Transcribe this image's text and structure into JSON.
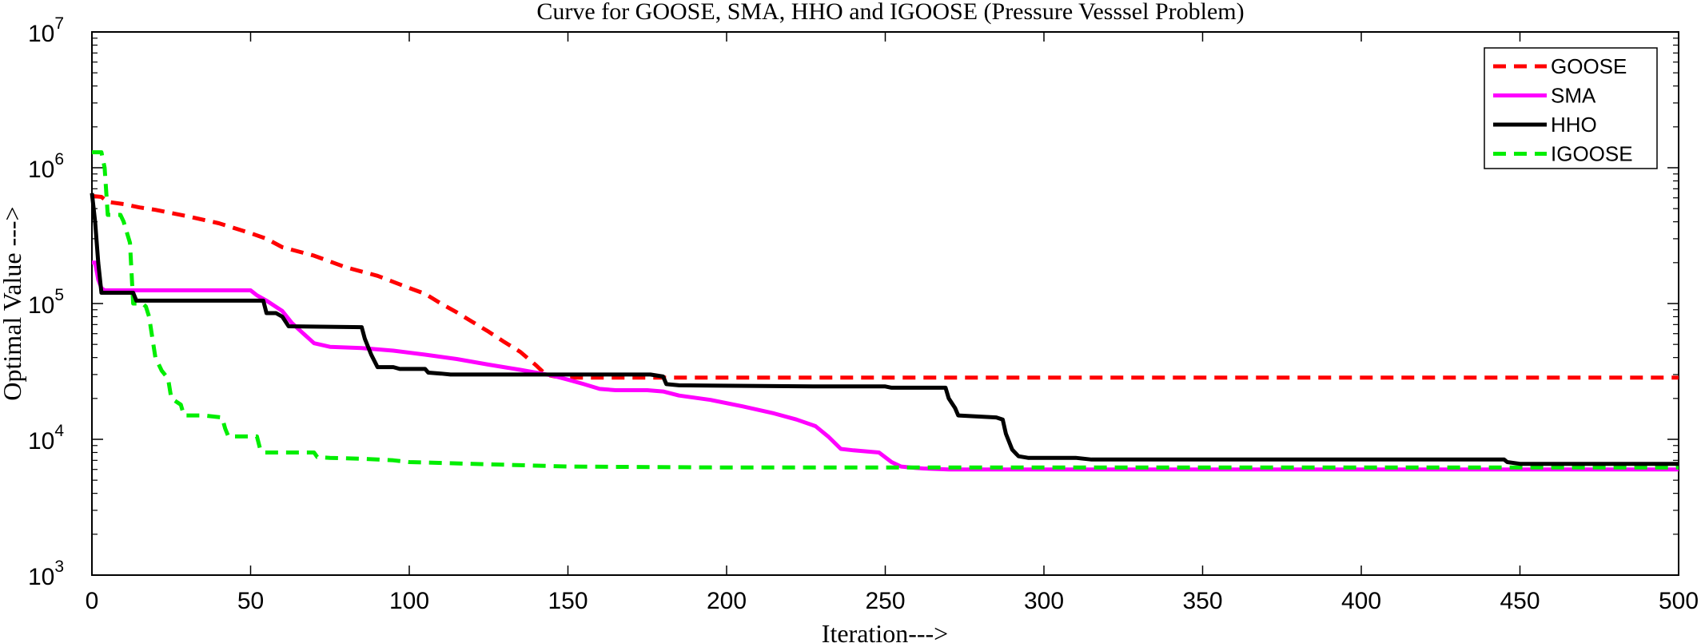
{
  "chart_data": {
    "type": "line",
    "title": "Curve for GOOSE, SMA, HHO and IGOOSE (Pressure Vesssel Problem)",
    "xlabel": "Iteration--->",
    "ylabel": "Optimal Value --->",
    "xlim": [
      0,
      500
    ],
    "ylim": [
      1000,
      10000000
    ],
    "yscale": "log",
    "x_ticks": [
      "0",
      "50",
      "100",
      "150",
      "200",
      "250",
      "300",
      "350",
      "400",
      "450",
      "500"
    ],
    "y_ticks": [
      {
        "base": "10",
        "exp": "3",
        "value": 1000
      },
      {
        "base": "10",
        "exp": "4",
        "value": 10000
      },
      {
        "base": "10",
        "exp": "5",
        "value": 100000
      },
      {
        "base": "10",
        "exp": "6",
        "value": 1000000
      },
      {
        "base": "10",
        "exp": "7",
        "value": 10000000
      }
    ],
    "grid": false,
    "legend_position": "top-right",
    "series": [
      {
        "name": "GOOSE",
        "color": "#ff0000",
        "style": "dashed",
        "points": [
          [
            0,
            620000
          ],
          [
            3,
            610000
          ],
          [
            5,
            560000
          ],
          [
            10,
            540000
          ],
          [
            15,
            510000
          ],
          [
            20,
            490000
          ],
          [
            30,
            440000
          ],
          [
            40,
            390000
          ],
          [
            50,
            330000
          ],
          [
            55,
            300000
          ],
          [
            60,
            260000
          ],
          [
            70,
            225000
          ],
          [
            80,
            185000
          ],
          [
            90,
            160000
          ],
          [
            100,
            130000
          ],
          [
            105,
            118000
          ],
          [
            110,
            100000
          ],
          [
            115,
            86000
          ],
          [
            120,
            73000
          ],
          [
            125,
            62000
          ],
          [
            130,
            52000
          ],
          [
            135,
            44000
          ],
          [
            140,
            35000
          ],
          [
            143,
            30000
          ],
          [
            146,
            29000
          ],
          [
            150,
            28500
          ],
          [
            200,
            28500
          ],
          [
            300,
            28500
          ],
          [
            400,
            28500
          ],
          [
            500,
            28500
          ]
        ]
      },
      {
        "name": "SMA",
        "color": "#ff00ff",
        "style": "solid",
        "points": [
          [
            0,
            200000
          ],
          [
            1,
            200000
          ],
          [
            2,
            150000
          ],
          [
            3,
            130000
          ],
          [
            4,
            125000
          ],
          [
            20,
            125000
          ],
          [
            40,
            125000
          ],
          [
            50,
            125000
          ],
          [
            52,
            115000
          ],
          [
            55,
            105000
          ],
          [
            60,
            88000
          ],
          [
            63,
            72000
          ],
          [
            66,
            62000
          ],
          [
            70,
            51000
          ],
          [
            75,
            48000
          ],
          [
            85,
            47000
          ],
          [
            95,
            45000
          ],
          [
            105,
            42000
          ],
          [
            115,
            39000
          ],
          [
            125,
            35500
          ],
          [
            135,
            32500
          ],
          [
            145,
            29500
          ],
          [
            150,
            27500
          ],
          [
            155,
            25500
          ],
          [
            160,
            23500
          ],
          [
            165,
            23000
          ],
          [
            175,
            23000
          ],
          [
            180,
            22500
          ],
          [
            185,
            21000
          ],
          [
            195,
            19500
          ],
          [
            205,
            17500
          ],
          [
            215,
            15500
          ],
          [
            222,
            14000
          ],
          [
            228,
            12500
          ],
          [
            232,
            10500
          ],
          [
            236,
            8500
          ],
          [
            240,
            8300
          ],
          [
            248,
            8000
          ],
          [
            252,
            6800
          ],
          [
            255,
            6300
          ],
          [
            258,
            6200
          ],
          [
            262,
            6100
          ],
          [
            270,
            6000
          ],
          [
            300,
            6000
          ],
          [
            400,
            6000
          ],
          [
            500,
            6000
          ]
        ]
      },
      {
        "name": "HHO",
        "color": "#000000",
        "style": "solid",
        "points": [
          [
            0,
            650000
          ],
          [
            1,
            400000
          ],
          [
            2,
            200000
          ],
          [
            3,
            120000
          ],
          [
            10,
            120000
          ],
          [
            13,
            120000
          ],
          [
            14,
            105000
          ],
          [
            50,
            105000
          ],
          [
            54,
            105000
          ],
          [
            55,
            85000
          ],
          [
            58,
            85000
          ],
          [
            60,
            80000
          ],
          [
            62,
            68000
          ],
          [
            85,
            67000
          ],
          [
            86,
            55000
          ],
          [
            88,
            42000
          ],
          [
            90,
            34000
          ],
          [
            95,
            34000
          ],
          [
            97,
            33000
          ],
          [
            105,
            33000
          ],
          [
            106,
            31000
          ],
          [
            110,
            30500
          ],
          [
            113,
            30000
          ],
          [
            140,
            30000
          ],
          [
            170,
            30000
          ],
          [
            176,
            30000
          ],
          [
            180,
            29000
          ],
          [
            181,
            25500
          ],
          [
            185,
            25000
          ],
          [
            230,
            24500
          ],
          [
            250,
            24500
          ],
          [
            252,
            24000
          ],
          [
            260,
            24000
          ],
          [
            269,
            24000
          ],
          [
            270,
            20000
          ],
          [
            272,
            17000
          ],
          [
            273,
            15000
          ],
          [
            285,
            14500
          ],
          [
            287,
            14000
          ],
          [
            288,
            11000
          ],
          [
            290,
            8400
          ],
          [
            292,
            7500
          ],
          [
            295,
            7300
          ],
          [
            300,
            7300
          ],
          [
            310,
            7300
          ],
          [
            315,
            7100
          ],
          [
            350,
            7100
          ],
          [
            400,
            7100
          ],
          [
            445,
            7100
          ],
          [
            446,
            6800
          ],
          [
            450,
            6600
          ],
          [
            500,
            6600
          ]
        ]
      },
      {
        "name": "IGOOSE",
        "color": "#00ee00",
        "style": "dashed",
        "points": [
          [
            0,
            1300000
          ],
          [
            3,
            1300000
          ],
          [
            4,
            1000000
          ],
          [
            5,
            450000
          ],
          [
            9,
            450000
          ],
          [
            10,
            400000
          ],
          [
            12,
            280000
          ],
          [
            13,
            100000
          ],
          [
            16,
            100000
          ],
          [
            17,
            95000
          ],
          [
            18,
            80000
          ],
          [
            20,
            40000
          ],
          [
            22,
            32000
          ],
          [
            24,
            28000
          ],
          [
            25,
            20000
          ],
          [
            28,
            18000
          ],
          [
            29,
            15000
          ],
          [
            35,
            15000
          ],
          [
            41,
            14500
          ],
          [
            42,
            12000
          ],
          [
            43,
            10500
          ],
          [
            52,
            10500
          ],
          [
            53,
            8500
          ],
          [
            54,
            8000
          ],
          [
            70,
            8000
          ],
          [
            71,
            7400
          ],
          [
            75,
            7300
          ],
          [
            85,
            7200
          ],
          [
            95,
            7000
          ],
          [
            100,
            6800
          ],
          [
            130,
            6500
          ],
          [
            150,
            6300
          ],
          [
            200,
            6200
          ],
          [
            250,
            6200
          ],
          [
            300,
            6200
          ],
          [
            400,
            6200
          ],
          [
            500,
            6200
          ]
        ]
      }
    ]
  }
}
